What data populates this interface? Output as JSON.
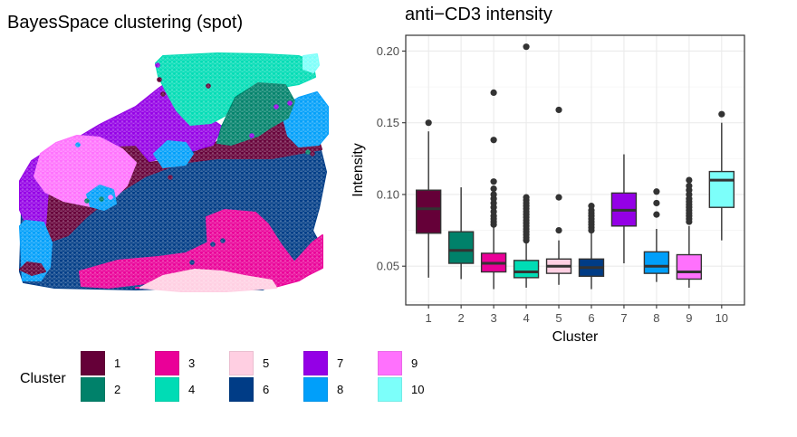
{
  "map": {
    "title": "BayesSpace clustering (spot)"
  },
  "legend": {
    "title": "Cluster",
    "items": [
      {
        "label": "1",
        "color": "#650038"
      },
      {
        "label": "2",
        "color": "#00816A"
      },
      {
        "label": "3",
        "color": "#EA0098"
      },
      {
        "label": "4",
        "color": "#00DCB5"
      },
      {
        "label": "5",
        "color": "#FFCFE2"
      },
      {
        "label": "6",
        "color": "#003C86"
      },
      {
        "label": "7",
        "color": "#9400E6"
      },
      {
        "label": "8",
        "color": "#009FFA"
      },
      {
        "label": "9",
        "color": "#FF71FD"
      },
      {
        "label": "10",
        "color": "#7CFFFA"
      }
    ]
  },
  "chart_data": [
    {
      "type": "box",
      "title": "anti−CD3 intensity",
      "xlabel": "Cluster",
      "ylabel": "Intensity",
      "ylim": [
        0.023,
        0.211
      ],
      "yticks": [
        0.05,
        0.1,
        0.15,
        0.2
      ],
      "ytick_labels": [
        "0.05",
        "0.10",
        "0.15",
        "0.20"
      ],
      "categories": [
        "1",
        "2",
        "3",
        "4",
        "5",
        "6",
        "7",
        "8",
        "9",
        "10"
      ],
      "grid": true,
      "boxes": [
        {
          "cluster": "1",
          "color": "#650038",
          "whisker_low": 0.042,
          "q1": 0.073,
          "median": 0.09,
          "q3": 0.103,
          "whisker_high": 0.144,
          "outliers": [
            0.15
          ]
        },
        {
          "cluster": "2",
          "color": "#00816A",
          "whisker_low": 0.041,
          "q1": 0.052,
          "median": 0.061,
          "q3": 0.074,
          "whisker_high": 0.105,
          "outliers": []
        },
        {
          "cluster": "3",
          "color": "#EA0098",
          "whisker_low": 0.034,
          "q1": 0.046,
          "median": 0.052,
          "q3": 0.059,
          "whisker_high": 0.077,
          "outliers": [
            0.079,
            0.081,
            0.083,
            0.085,
            0.088,
            0.091,
            0.094,
            0.097,
            0.1,
            0.104,
            0.109,
            0.138,
            0.171
          ]
        },
        {
          "cluster": "4",
          "color": "#00DCB5",
          "whisker_low": 0.035,
          "q1": 0.042,
          "median": 0.046,
          "q3": 0.054,
          "whisker_high": 0.066,
          "outliers": [
            0.068,
            0.07,
            0.072,
            0.074,
            0.076,
            0.078,
            0.08,
            0.082,
            0.084,
            0.086,
            0.088,
            0.09,
            0.092,
            0.094,
            0.096,
            0.098,
            0.203
          ]
        },
        {
          "cluster": "5",
          "color": "#FFCFE2",
          "whisker_low": 0.037,
          "q1": 0.045,
          "median": 0.05,
          "q3": 0.055,
          "whisker_high": 0.068,
          "outliers": [
            0.075,
            0.098,
            0.159
          ]
        },
        {
          "cluster": "6",
          "color": "#003C86",
          "whisker_low": 0.034,
          "q1": 0.043,
          "median": 0.049,
          "q3": 0.055,
          "whisker_high": 0.073,
          "outliers": [
            0.075,
            0.077,
            0.079,
            0.081,
            0.083,
            0.085,
            0.087,
            0.089,
            0.092
          ]
        },
        {
          "cluster": "7",
          "color": "#9400E6",
          "whisker_low": 0.052,
          "q1": 0.078,
          "median": 0.089,
          "q3": 0.101,
          "whisker_high": 0.128,
          "outliers": []
        },
        {
          "cluster": "8",
          "color": "#009FFA",
          "whisker_low": 0.039,
          "q1": 0.045,
          "median": 0.05,
          "q3": 0.06,
          "whisker_high": 0.076,
          "outliers": [
            0.086,
            0.094,
            0.102
          ]
        },
        {
          "cluster": "9",
          "color": "#FF71FD",
          "whisker_low": 0.035,
          "q1": 0.041,
          "median": 0.046,
          "q3": 0.058,
          "whisker_high": 0.078,
          "outliers": [
            0.081,
            0.083,
            0.085,
            0.087,
            0.089,
            0.091,
            0.093,
            0.095,
            0.097,
            0.1,
            0.103,
            0.106,
            0.11
          ]
        },
        {
          "cluster": "10",
          "color": "#7CFFFA",
          "whisker_low": 0.068,
          "q1": 0.091,
          "median": 0.11,
          "q3": 0.116,
          "whisker_high": 0.15,
          "outliers": [
            0.156
          ]
        }
      ]
    },
    {
      "type": "scatter",
      "title": "BayesSpace clustering (spot)",
      "description": "Spatial hexagonal spot map colored by BayesSpace cluster (1-10)",
      "legend_title": "Cluster",
      "legend_position": "bottom"
    }
  ]
}
